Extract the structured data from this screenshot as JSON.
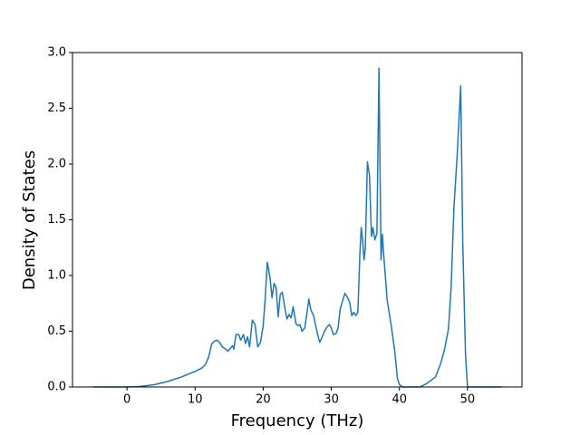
{
  "chart_data": {
    "type": "line",
    "xlabel": "Frequency (THz)",
    "ylabel": "Density of States",
    "color": "#1f77b4",
    "x": [
      -5,
      0,
      2,
      4,
      6,
      8,
      10,
      11,
      11.5,
      12,
      12.4,
      12.8,
      13.2,
      13.6,
      14,
      14.5,
      14.8,
      15.2,
      15.5,
      15.7,
      16,
      16.4,
      16.7,
      17.1,
      17.4,
      17.7,
      18,
      18.4,
      18.8,
      19.2,
      19.6,
      20,
      20.3,
      20.6,
      21,
      21.3,
      21.6,
      21.9,
      22.2,
      22.5,
      22.8,
      23.2,
      23.5,
      23.8,
      24.1,
      24.4,
      24.8,
      25.1,
      25.4,
      25.7,
      26.1,
      26.4,
      26.7,
      27,
      27.4,
      27.7,
      28,
      28.3,
      28.6,
      29,
      29.4,
      29.7,
      30,
      30.3,
      30.7,
      31,
      31.3,
      31.7,
      32,
      32.4,
      32.7,
      33,
      33.3,
      33.6,
      33.9,
      34.2,
      34.4,
      34.6,
      34.8,
      35,
      35.3,
      35.6,
      35.9,
      36.1,
      36.4,
      36.7,
      37,
      37.3,
      37.5,
      37.7,
      38.2,
      38.8,
      39.3,
      39.7,
      40,
      40.5,
      43,
      44,
      45.3,
      46,
      46.6,
      47.2,
      47.6,
      48,
      48.5,
      49,
      49.3,
      49.7,
      50,
      55
    ],
    "values": [
      0,
      0,
      0.005,
      0.02,
      0.05,
      0.09,
      0.14,
      0.17,
      0.2,
      0.27,
      0.38,
      0.41,
      0.42,
      0.4,
      0.36,
      0.34,
      0.32,
      0.35,
      0.37,
      0.34,
      0.47,
      0.47,
      0.42,
      0.47,
      0.39,
      0.45,
      0.36,
      0.6,
      0.56,
      0.36,
      0.4,
      0.55,
      0.8,
      1.12,
      0.98,
      0.8,
      0.93,
      0.89,
      0.63,
      0.83,
      0.85,
      0.7,
      0.61,
      0.65,
      0.62,
      0.72,
      0.57,
      0.55,
      0.56,
      0.5,
      0.53,
      0.65,
      0.79,
      0.69,
      0.64,
      0.55,
      0.47,
      0.4,
      0.44,
      0.5,
      0.54,
      0.56,
      0.53,
      0.47,
      0.48,
      0.53,
      0.7,
      0.78,
      0.84,
      0.8,
      0.76,
      0.64,
      0.67,
      0.64,
      0.67,
      1.2,
      1.43,
      1.32,
      1.14,
      1.25,
      2.02,
      1.9,
      1.35,
      1.43,
      1.32,
      1.38,
      2.86,
      1.14,
      1.37,
      1.18,
      0.78,
      0.55,
      0.33,
      0.08,
      0.02,
      0,
      0,
      0.03,
      0.09,
      0.2,
      0.33,
      0.52,
      0.9,
      1.6,
      2.1,
      2.7,
      1.3,
      0.3,
      0,
      0
    ],
    "xlim": [
      -8,
      58
    ],
    "xticks": [
      0,
      10,
      20,
      30,
      40,
      50
    ],
    "ylim": [
      0,
      3
    ],
    "yticks": [
      {
        "value": 0,
        "label": "0.0"
      },
      {
        "value": 0.5,
        "label": "0.5"
      },
      {
        "value": 1,
        "label": "1.0"
      },
      {
        "value": 1.5,
        "label": "1.5"
      },
      {
        "value": 2,
        "label": "2.0"
      },
      {
        "value": 2.5,
        "label": "2.5"
      },
      {
        "value": 3,
        "label": "3.0"
      }
    ]
  }
}
